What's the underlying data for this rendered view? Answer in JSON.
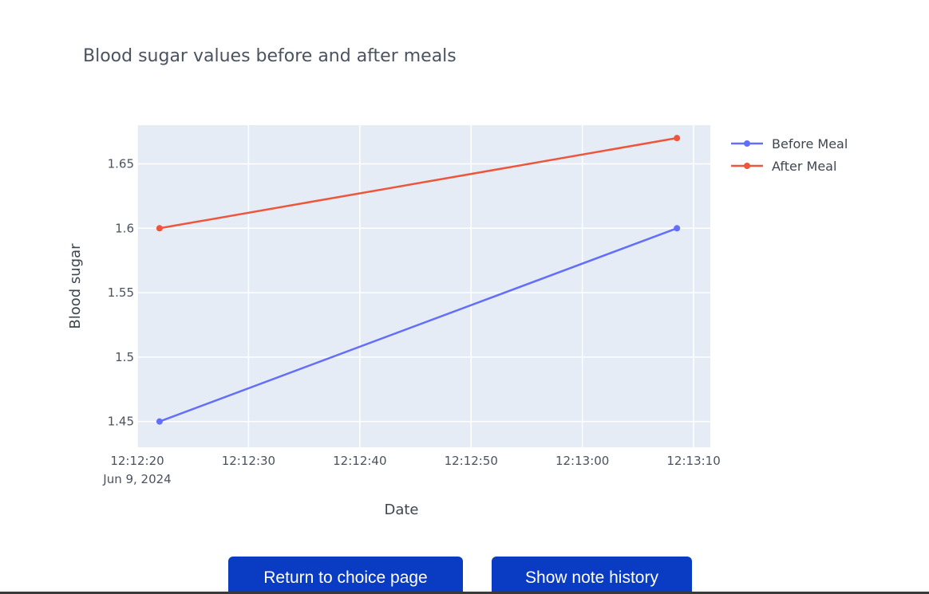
{
  "chart_data": {
    "type": "line",
    "title": "Blood sugar values before and after meals",
    "xlabel": "Date",
    "ylabel": "Blood sugar",
    "x_tick_labels": [
      "12:12:20",
      "12:12:30",
      "12:12:40",
      "12:12:50",
      "12:13:00",
      "12:13:10"
    ],
    "x_tick_sublabel": "Jun 9, 2024",
    "x_tick_values": [
      "2024-06-09 12:12:20",
      "2024-06-09 12:12:30",
      "2024-06-09 12:12:40",
      "2024-06-09 12:12:50",
      "2024-06-09 12:13:00",
      "2024-06-09 12:13:10"
    ],
    "xlim": [
      "2024-06-09 12:12:20",
      "2024-06-09 12:13:11.5"
    ],
    "y_tick_labels": [
      "1.45",
      "1.5",
      "1.55",
      "1.6",
      "1.65"
    ],
    "y_tick_values": [
      1.45,
      1.5,
      1.55,
      1.6,
      1.65
    ],
    "ylim": [
      1.43,
      1.68
    ],
    "grid": true,
    "legend_placement": "top-right-outside",
    "plot_background": "#e5ecf6",
    "series": [
      {
        "name": "Before Meal",
        "color": "#636efa",
        "x": [
          "2024-06-09 12:12:22",
          "2024-06-09 12:13:08.5"
        ],
        "y": [
          1.45,
          1.6
        ]
      },
      {
        "name": "After Meal",
        "color": "#ef553b",
        "x": [
          "2024-06-09 12:12:22",
          "2024-06-09 12:13:08.5"
        ],
        "y": [
          1.6,
          1.67
        ]
      }
    ]
  },
  "buttons": {
    "return_label": "Return to choice page",
    "history_label": "Show note history",
    "color": "#0a3bc3"
  }
}
